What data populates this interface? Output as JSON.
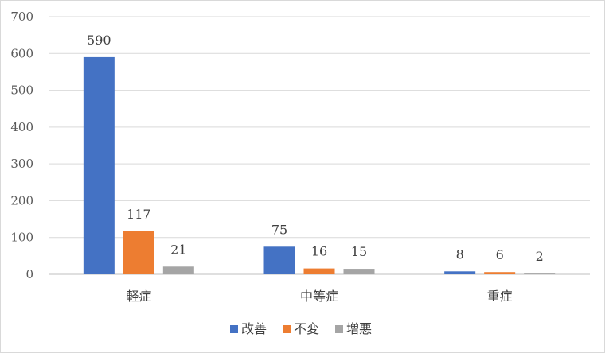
{
  "chart_data": {
    "type": "bar",
    "categories": [
      "軽症",
      "中等症",
      "重症"
    ],
    "series": [
      {
        "name": "改善",
        "values": [
          590,
          75,
          8
        ],
        "color": "#4472c4"
      },
      {
        "name": "不変",
        "values": [
          117,
          16,
          6
        ],
        "color": "#ed7d31"
      },
      {
        "name": "増悪",
        "values": [
          21,
          15,
          2
        ],
        "color": "#a5a5a5"
      }
    ],
    "title": "",
    "xlabel": "",
    "ylabel": "",
    "ylim": [
      0,
      700
    ],
    "yticks": [
      0,
      100,
      200,
      300,
      400,
      500,
      600,
      700
    ],
    "grid": true,
    "legend_position": "bottom"
  }
}
